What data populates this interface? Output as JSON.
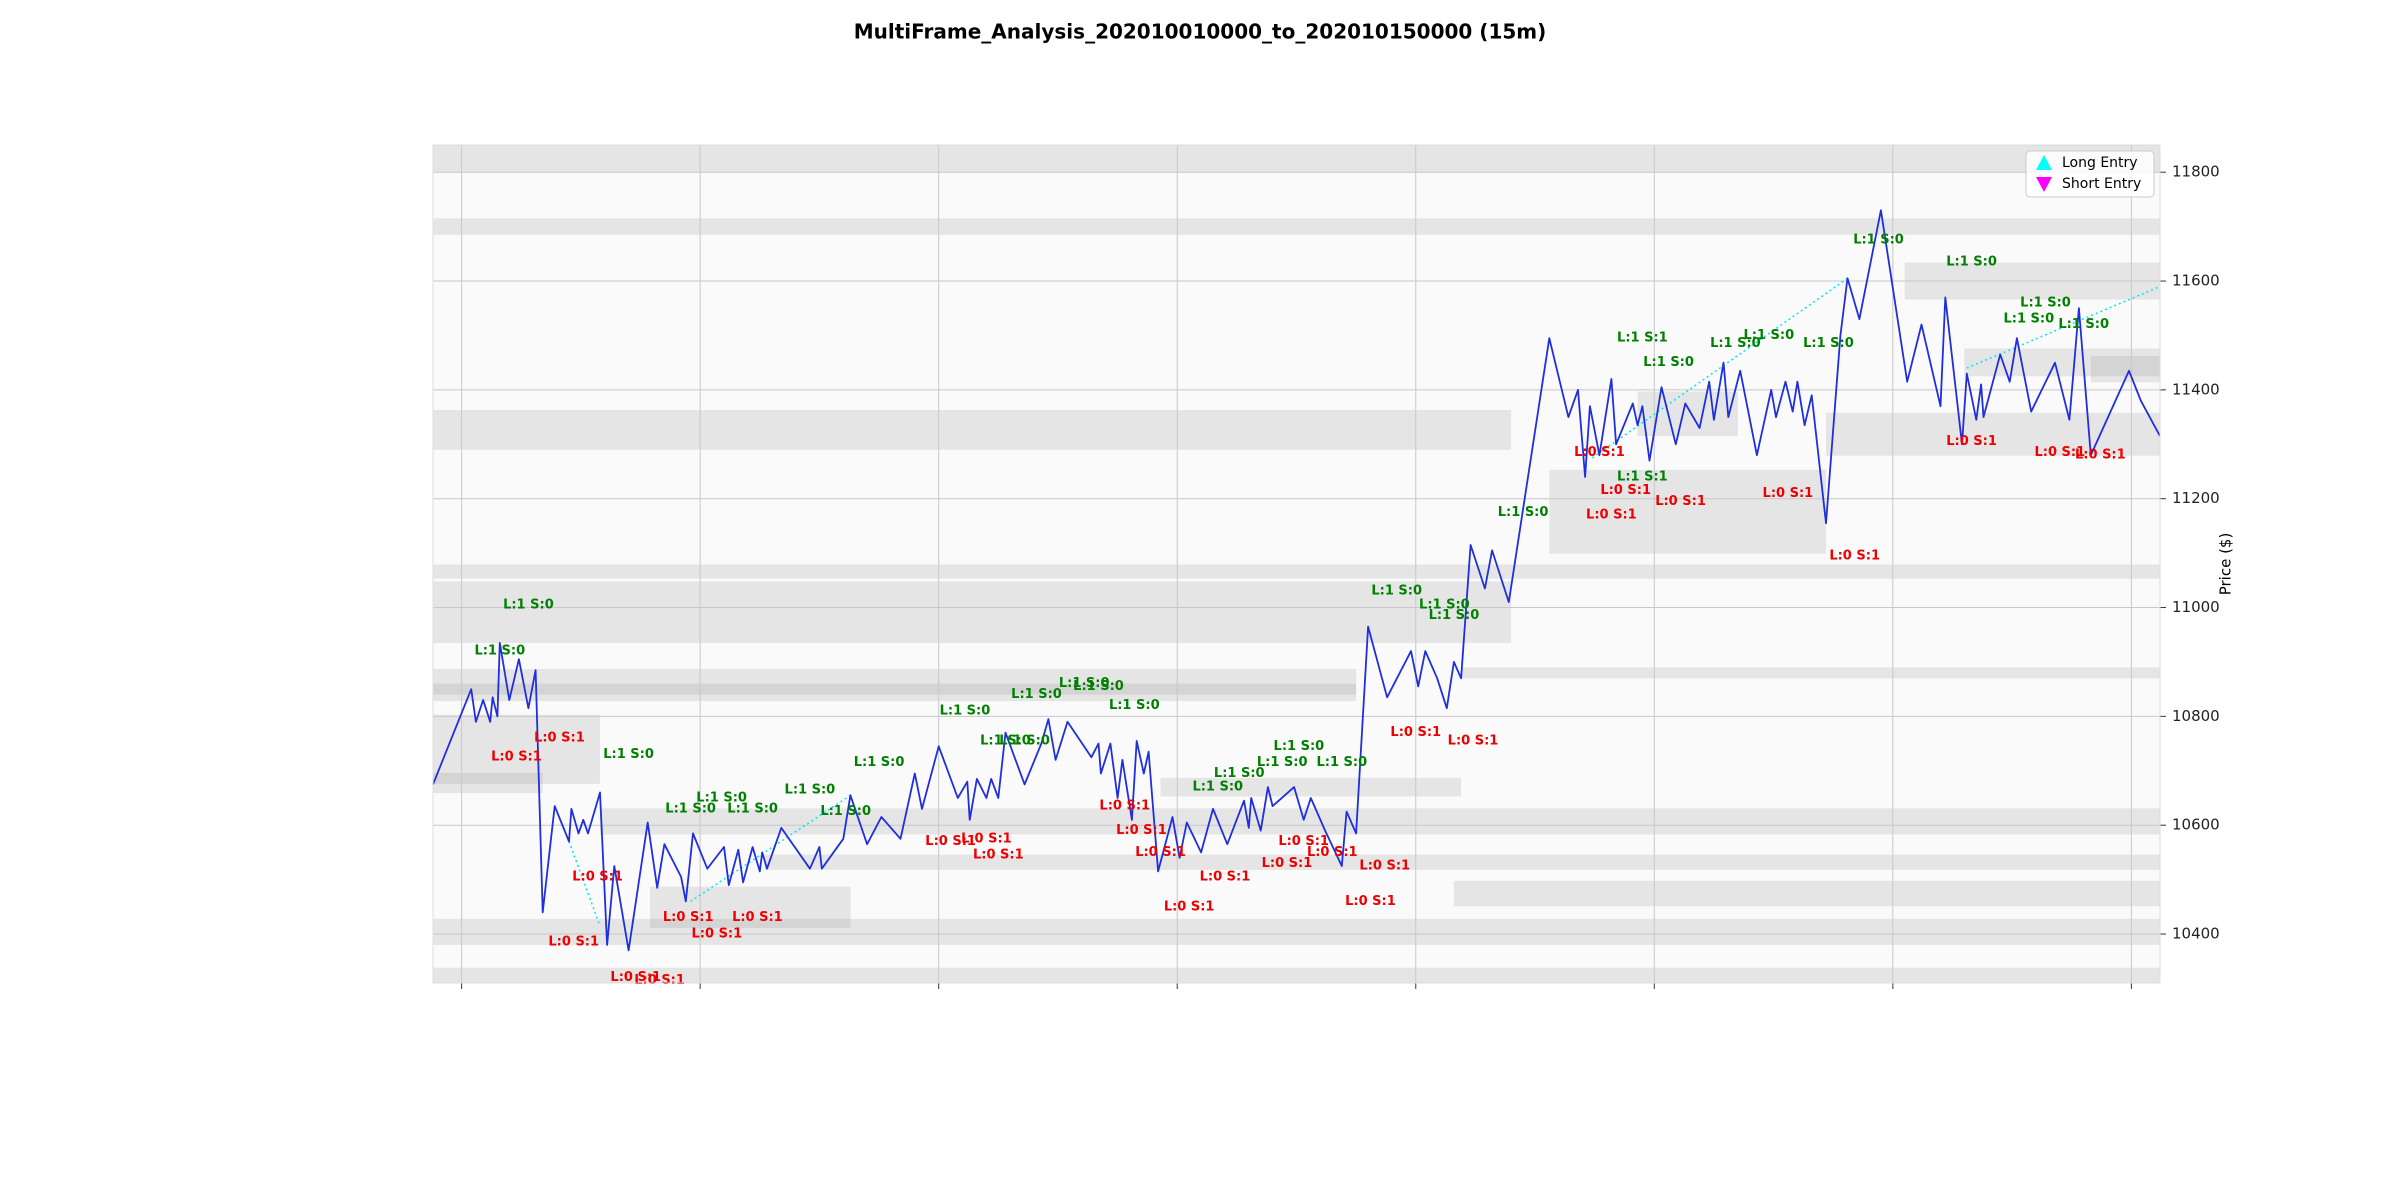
{
  "chart_data": {
    "type": "line",
    "title": "MultiFrame_Analysis_202010010000_to_202010150000 (15m)",
    "y_label": "Price ($)",
    "xlim": [
      -12,
      712
    ],
    "xticks": [
      0,
      100,
      200,
      300,
      400,
      500,
      600,
      700
    ],
    "ylim": [
      10310,
      11850
    ],
    "yticks": [
      10400,
      10600,
      10800,
      11000,
      11200,
      11400,
      11600,
      11800
    ],
    "grid": true,
    "legend_corner": "upper right",
    "legend": [
      {
        "name": "Long Entry",
        "color": "#00ffff",
        "symbol": "triangle-up"
      },
      {
        "name": "Short Entry",
        "color": "#ff00ff",
        "symbol": "triangle-down"
      }
    ],
    "line": {
      "color": "#1f2fdd",
      "x": [
        -12,
        4,
        6,
        9,
        12,
        13,
        15,
        16,
        20,
        24,
        28,
        31,
        34,
        39,
        45,
        46,
        49,
        51,
        53,
        58,
        61,
        64,
        70,
        78,
        82,
        85,
        92,
        94,
        97,
        103,
        110,
        112,
        116,
        118,
        122,
        125,
        126,
        128,
        134,
        146,
        150,
        151,
        160,
        163,
        170,
        176,
        184,
        190,
        193,
        200,
        208,
        212,
        213,
        216,
        220,
        222,
        225,
        228,
        236,
        243,
        246,
        249,
        254,
        264,
        267,
        268,
        272,
        275,
        277,
        281,
        283,
        286,
        288,
        292,
        298,
        301,
        304,
        310,
        315,
        321,
        328,
        330,
        331,
        335,
        338,
        340,
        349,
        353,
        356,
        362,
        369,
        371,
        375,
        380,
        388,
        398,
        401,
        404,
        409,
        413,
        416,
        419,
        423,
        429,
        432,
        439,
        456,
        464,
        468,
        471,
        473,
        477,
        482,
        484,
        491,
        493,
        495,
        498,
        503,
        509,
        513,
        519,
        523,
        525,
        529,
        531,
        536,
        543,
        549,
        551,
        555,
        558,
        560,
        563,
        566,
        572,
        578,
        581,
        586,
        595,
        606,
        612,
        620,
        622,
        629,
        631,
        635,
        637,
        638,
        645,
        649,
        652,
        658,
        668,
        674,
        678,
        683,
        699,
        704,
        712
      ],
      "values": [
        10675,
        10850,
        10790,
        10830,
        10790,
        10835,
        10800,
        10935,
        10830,
        10905,
        10815,
        10885,
        10440,
        10635,
        10570,
        10630,
        10585,
        10610,
        10585,
        10660,
        10380,
        10525,
        10370,
        10605,
        10485,
        10565,
        10505,
        10460,
        10585,
        10520,
        10560,
        10490,
        10555,
        10495,
        10560,
        10515,
        10550,
        10520,
        10595,
        10520,
        10560,
        10520,
        10575,
        10655,
        10565,
        10615,
        10575,
        10695,
        10630,
        10745,
        10650,
        10680,
        10610,
        10685,
        10650,
        10685,
        10650,
        10770,
        10675,
        10750,
        10795,
        10720,
        10790,
        10725,
        10750,
        10695,
        10750,
        10650,
        10720,
        10610,
        10755,
        10695,
        10735,
        10515,
        10615,
        10540,
        10605,
        10550,
        10630,
        10565,
        10645,
        10595,
        10650,
        10590,
        10670,
        10635,
        10670,
        10610,
        10650,
        10590,
        10525,
        10625,
        10585,
        10965,
        10835,
        10920,
        10855,
        10920,
        10870,
        10815,
        10900,
        10870,
        11115,
        11035,
        11105,
        11010,
        11495,
        11350,
        11400,
        11240,
        11370,
        11280,
        11420,
        11300,
        11375,
        11335,
        11370,
        11270,
        11405,
        11300,
        11375,
        11330,
        11415,
        11345,
        11450,
        11350,
        11435,
        11280,
        11400,
        11350,
        11415,
        11360,
        11415,
        11335,
        11390,
        11155,
        11500,
        11605,
        11530,
        11730,
        11415,
        11520,
        11370,
        11570,
        11300,
        11430,
        11345,
        11410,
        11350,
        11465,
        11415,
        11495,
        11360,
        11450,
        11345,
        11550,
        11280,
        11435,
        11380,
        11315
      ]
    },
    "signal_path": {
      "color": "#00e5ff",
      "x": [
        45,
        58,
        null,
        96,
        163,
        null,
        474,
        581,
        null,
        631,
        712
      ],
      "values": [
        10570,
        10415,
        null,
        10460,
        10655,
        null,
        11275,
        11605,
        null,
        11440,
        11590
      ]
    },
    "zones": [
      {
        "x0": -12,
        "x1": 712,
        "y0": 11800,
        "y1": 11850
      },
      {
        "x0": -12,
        "x1": 712,
        "y0": 11685,
        "y1": 11715
      },
      {
        "x0": -12,
        "x1": 440,
        "y0": 11290,
        "y1": 11363
      },
      {
        "x0": -12,
        "x1": 712,
        "y0": 11053,
        "y1": 11079
      },
      {
        "x0": -12,
        "x1": 440,
        "y0": 10935,
        "y1": 11048
      },
      {
        "x0": -12,
        "x1": 375,
        "y0": 10828,
        "y1": 10887
      },
      {
        "x0": -12,
        "x1": 375,
        "y0": 10840,
        "y1": 10860
      },
      {
        "x0": 419,
        "x1": 712,
        "y0": 10870,
        "y1": 10890
      },
      {
        "x0": -12,
        "x1": 58,
        "y0": 10676,
        "y1": 10803
      },
      {
        "x0": -12,
        "x1": 34,
        "y0": 10659,
        "y1": 10696
      },
      {
        "x0": 293,
        "x1": 419,
        "y0": 10653,
        "y1": 10687
      },
      {
        "x0": 58,
        "x1": 712,
        "y0": 10583,
        "y1": 10631
      },
      {
        "x0": 127,
        "x1": 712,
        "y0": 10518,
        "y1": 10546
      },
      {
        "x0": 416,
        "x1": 712,
        "y0": 10451,
        "y1": 10498
      },
      {
        "x0": 79,
        "x1": 163,
        "y0": 10411,
        "y1": 10487
      },
      {
        "x0": -12,
        "x1": 712,
        "y0": 10380,
        "y1": 10428
      },
      {
        "x0": -12,
        "x1": 712,
        "y0": 10310,
        "y1": 10338
      },
      {
        "x0": 456,
        "x1": 572,
        "y0": 11099,
        "y1": 11253
      },
      {
        "x0": 572,
        "x1": 712,
        "y0": 11279,
        "y1": 11358
      },
      {
        "x0": 630,
        "x1": 712,
        "y0": 11425,
        "y1": 11476
      },
      {
        "x0": 605,
        "x1": 712,
        "y0": 11566,
        "y1": 11634
      },
      {
        "x0": 493,
        "x1": 535,
        "y0": 11315,
        "y1": 11397
      },
      {
        "x0": 683,
        "x1": 712,
        "y0": 11414,
        "y1": 11462
      }
    ],
    "annotations": [
      {
        "text": "L:1 S:0",
        "x": 28,
        "y": 11005,
        "color": "#008000"
      },
      {
        "text": "L:1 S:0",
        "x": 16,
        "y": 10920,
        "color": "#008000"
      },
      {
        "text": "L:1 S:0",
        "x": 70,
        "y": 10730,
        "color": "#008000"
      },
      {
        "text": "L:1 S:0",
        "x": 96,
        "y": 10630,
        "color": "#008000"
      },
      {
        "text": "L:1 S:0",
        "x": 109,
        "y": 10650,
        "color": "#008000"
      },
      {
        "text": "L:1 S:0",
        "x": 122,
        "y": 10630,
        "color": "#008000"
      },
      {
        "text": "L:1 S:0",
        "x": 146,
        "y": 10665,
        "color": "#008000"
      },
      {
        "text": "L:1 S:0",
        "x": 161,
        "y": 10625,
        "color": "#008000"
      },
      {
        "text": "L:1 S:0",
        "x": 175,
        "y": 10715,
        "color": "#008000"
      },
      {
        "text": "L:1 S:0",
        "x": 211,
        "y": 10810,
        "color": "#008000"
      },
      {
        "text": "L:1 S:0",
        "x": 228,
        "y": 10755,
        "color": "#008000"
      },
      {
        "text": "L:1 S:0",
        "x": 236,
        "y": 10755,
        "color": "#008000"
      },
      {
        "text": "L:1 S:0",
        "x": 241,
        "y": 10840,
        "color": "#008000"
      },
      {
        "text": "L:1 S:0",
        "x": 261,
        "y": 10860,
        "color": "#008000"
      },
      {
        "text": "L:1 S:0",
        "x": 267,
        "y": 10855,
        "color": "#008000"
      },
      {
        "text": "L:1 S:0",
        "x": 282,
        "y": 10820,
        "color": "#008000"
      },
      {
        "text": "L:1 S:0",
        "x": 317,
        "y": 10670,
        "color": "#008000"
      },
      {
        "text": "L:1 S:0",
        "x": 326,
        "y": 10695,
        "color": "#008000"
      },
      {
        "text": "L:1 S:0",
        "x": 344,
        "y": 10715,
        "color": "#008000"
      },
      {
        "text": "L:1 S:0",
        "x": 351,
        "y": 10745,
        "color": "#008000"
      },
      {
        "text": "L:1 S:0",
        "x": 369,
        "y": 10715,
        "color": "#008000"
      },
      {
        "text": "L:1 S:0",
        "x": 392,
        "y": 11030,
        "color": "#008000"
      },
      {
        "text": "L:1 S:0",
        "x": 412,
        "y": 11005,
        "color": "#008000"
      },
      {
        "text": "L:1 S:0",
        "x": 416,
        "y": 10985,
        "color": "#008000"
      },
      {
        "text": "L:1 S:0",
        "x": 445,
        "y": 11175,
        "color": "#008000"
      },
      {
        "text": "L:1 S:1",
        "x": 495,
        "y": 11495,
        "color": "#008000"
      },
      {
        "text": "L:1 S:0",
        "x": 506,
        "y": 11450,
        "color": "#008000"
      },
      {
        "text": "L:1 S:1",
        "x": 495,
        "y": 11240,
        "color": "#008000"
      },
      {
        "text": "L:1 S:0",
        "x": 534,
        "y": 11485,
        "color": "#008000"
      },
      {
        "text": "L:1 S:0",
        "x": 548,
        "y": 11500,
        "color": "#008000"
      },
      {
        "text": "L:1 S:0",
        "x": 573,
        "y": 11485,
        "color": "#008000"
      },
      {
        "text": "L:1 S:0",
        "x": 594,
        "y": 11675,
        "color": "#008000"
      },
      {
        "text": "L:1 S:0",
        "x": 633,
        "y": 11635,
        "color": "#008000"
      },
      {
        "text": "L:1 S:0",
        "x": 664,
        "y": 11560,
        "color": "#008000"
      },
      {
        "text": "L:1 S:0",
        "x": 657,
        "y": 11530,
        "color": "#008000"
      },
      {
        "text": "L:1 S:0",
        "x": 680,
        "y": 11520,
        "color": "#008000"
      },
      {
        "text": "L:0 S:1",
        "x": 23,
        "y": 10725,
        "color": "#ee0000"
      },
      {
        "text": "L:0 S:1",
        "x": 41,
        "y": 10760,
        "color": "#ee0000"
      },
      {
        "text": "L:0 S:1",
        "x": 57,
        "y": 10505,
        "color": "#ee0000"
      },
      {
        "text": "L:0 S:1",
        "x": 47,
        "y": 10385,
        "color": "#ee0000"
      },
      {
        "text": "L:0 S:1",
        "x": 73,
        "y": 10320,
        "color": "#ee0000"
      },
      {
        "text": "L:0 S:1",
        "x": 83,
        "y": 10315,
        "color": "#ee0000"
      },
      {
        "text": "L:0 S:1",
        "x": 95,
        "y": 10430,
        "color": "#ee0000"
      },
      {
        "text": "L:0 S:1",
        "x": 107,
        "y": 10400,
        "color": "#ee0000"
      },
      {
        "text": "L:0 S:1",
        "x": 124,
        "y": 10430,
        "color": "#ee0000"
      },
      {
        "text": "L:0 S:1",
        "x": 205,
        "y": 10570,
        "color": "#ee0000"
      },
      {
        "text": "L:0 S:1",
        "x": 220,
        "y": 10575,
        "color": "#ee0000"
      },
      {
        "text": "L:0 S:1",
        "x": 225,
        "y": 10545,
        "color": "#ee0000"
      },
      {
        "text": "L:0 S:1",
        "x": 278,
        "y": 10635,
        "color": "#ee0000"
      },
      {
        "text": "L:0 S:1",
        "x": 285,
        "y": 10590,
        "color": "#ee0000"
      },
      {
        "text": "L:0 S:1",
        "x": 293,
        "y": 10550,
        "color": "#ee0000"
      },
      {
        "text": "L:0 S:1",
        "x": 305,
        "y": 10450,
        "color": "#ee0000"
      },
      {
        "text": "L:0 S:1",
        "x": 320,
        "y": 10505,
        "color": "#ee0000"
      },
      {
        "text": "L:0 S:1",
        "x": 353,
        "y": 10570,
        "color": "#ee0000"
      },
      {
        "text": "L:0 S:1",
        "x": 346,
        "y": 10530,
        "color": "#ee0000"
      },
      {
        "text": "L:0 S:1",
        "x": 365,
        "y": 10550,
        "color": "#ee0000"
      },
      {
        "text": "L:0 S:1",
        "x": 387,
        "y": 10525,
        "color": "#ee0000"
      },
      {
        "text": "L:0 S:1",
        "x": 381,
        "y": 10460,
        "color": "#ee0000"
      },
      {
        "text": "L:0 S:1",
        "x": 400,
        "y": 10770,
        "color": "#ee0000"
      },
      {
        "text": "L:0 S:1",
        "x": 424,
        "y": 10755,
        "color": "#ee0000"
      },
      {
        "text": "L:0 S:1",
        "x": 477,
        "y": 11285,
        "color": "#ee0000"
      },
      {
        "text": "L:0 S:1",
        "x": 488,
        "y": 11215,
        "color": "#ee0000"
      },
      {
        "text": "L:0 S:1",
        "x": 482,
        "y": 11170,
        "color": "#ee0000"
      },
      {
        "text": "L:0 S:1",
        "x": 511,
        "y": 11195,
        "color": "#ee0000"
      },
      {
        "text": "L:0 S:1",
        "x": 556,
        "y": 11210,
        "color": "#ee0000"
      },
      {
        "text": "L:0 S:1",
        "x": 584,
        "y": 11095,
        "color": "#ee0000"
      },
      {
        "text": "L:0 S:1",
        "x": 633,
        "y": 11305,
        "color": "#ee0000"
      },
      {
        "text": "L:0 S:1",
        "x": 670,
        "y": 11285,
        "color": "#ee0000"
      },
      {
        "text": "L:0 S:1",
        "x": 687,
        "y": 11280,
        "color": "#ee0000"
      }
    ]
  }
}
